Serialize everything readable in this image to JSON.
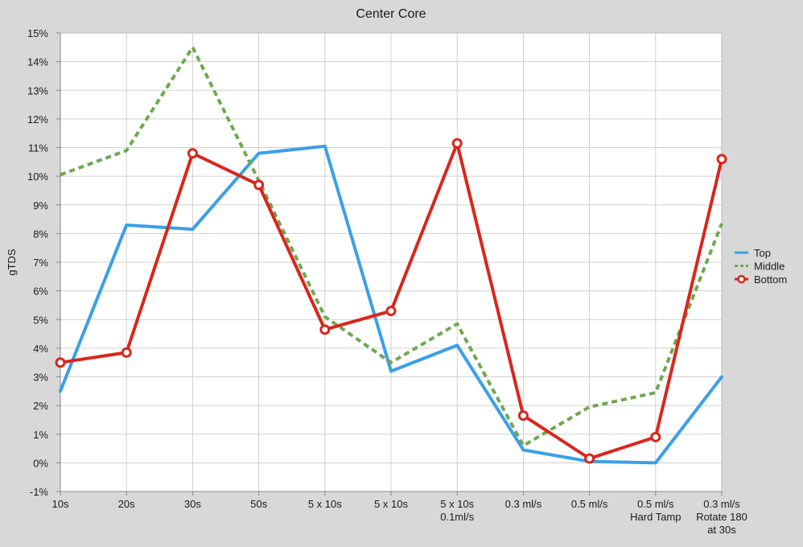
{
  "chart_data": {
    "type": "line",
    "title": "Center Core",
    "xlabel": "",
    "ylabel": "gTDS",
    "categories": [
      [
        "10s"
      ],
      [
        "20s"
      ],
      [
        "30s"
      ],
      [
        "50s"
      ],
      [
        "5 x 10s"
      ],
      [
        "5 x 10s"
      ],
      [
        "5 x 10s",
        "0.1ml/s"
      ],
      [
        "0.3 ml/s"
      ],
      [
        "0.5 ml/s"
      ],
      [
        "0.5 ml/s",
        "Hard Tamp"
      ],
      [
        "0.3 ml/s",
        "Rotate 180",
        "at 30s"
      ]
    ],
    "yticks": [
      "-1%",
      "0%",
      "1%",
      "2%",
      "3%",
      "4%",
      "5%",
      "6%",
      "7%",
      "8%",
      "9%",
      "10%",
      "11%",
      "12%",
      "13%",
      "14%",
      "15%"
    ],
    "ylim": [
      -1,
      15
    ],
    "grid": true,
    "legend_position": "right",
    "series": [
      {
        "name": "Top",
        "color": "#3aa0e8",
        "style": "solid",
        "markers": false,
        "values": [
          2.5,
          8.3,
          8.15,
          10.8,
          11.05,
          3.2,
          4.1,
          0.45,
          0.05,
          0.0,
          3.0
        ]
      },
      {
        "name": "Middle",
        "color": "#6ea84f",
        "style": "dashed",
        "markers": false,
        "values": [
          10.05,
          10.9,
          14.5,
          9.85,
          5.1,
          3.5,
          4.85,
          0.6,
          1.95,
          2.45,
          8.35
        ]
      },
      {
        "name": "Bottom",
        "color": "#d9261c",
        "style": "solid",
        "markers": true,
        "values": [
          3.5,
          3.85,
          10.8,
          9.7,
          4.65,
          5.3,
          11.15,
          1.65,
          0.15,
          0.9,
          10.6
        ]
      }
    ]
  }
}
